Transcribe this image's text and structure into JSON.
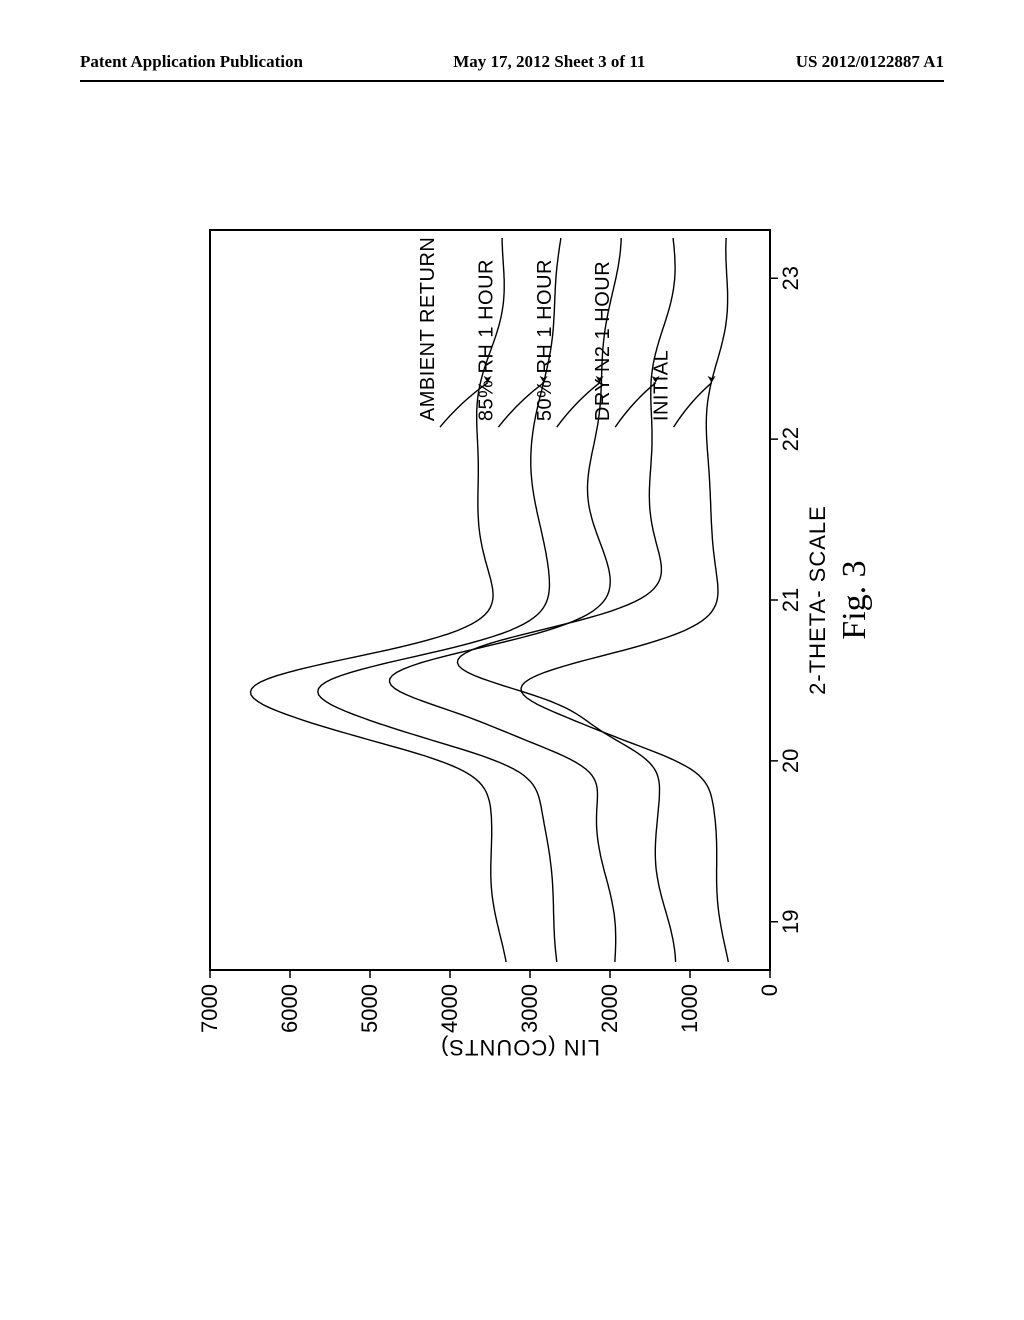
{
  "header": {
    "left": "Patent Application Publication",
    "center": "May 17, 2012  Sheet 3 of 11",
    "right": "US 2012/0122887 A1"
  },
  "figure": {
    "caption": "Fig. 3",
    "x_axis_label": "2-THETA- SCALE",
    "y_axis_label": "LIN (COUNTS)",
    "x_ticks": [
      "19",
      "20",
      "21",
      "22",
      "23"
    ],
    "x_tick_vals": [
      19,
      20,
      21,
      22,
      23
    ],
    "y_ticks": [
      "0",
      "1000",
      "2000",
      "3000",
      "4000",
      "5000",
      "6000",
      "7000"
    ],
    "y_tick_vals": [
      0,
      1000,
      2000,
      3000,
      4000,
      5000,
      6000,
      7000
    ],
    "xlim": [
      18.7,
      23.3
    ],
    "ylim": [
      0,
      7000
    ],
    "series_labels": [
      "AMBIENT RETURN",
      "85% RH 1 HOUR",
      "50% RH 1 HOUR",
      "DRY N2 1 HOUR",
      "INITIAL"
    ],
    "colors": {
      "background": "#ffffff",
      "line": "#000000",
      "text": "#000000"
    },
    "line_width": 1.3
  }
}
